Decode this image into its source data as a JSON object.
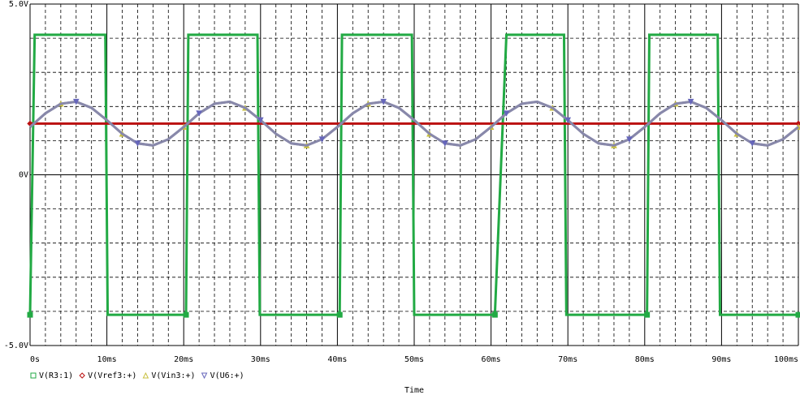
{
  "chart_data": {
    "type": "line",
    "xlabel": "Time",
    "xlim": [
      0,
      100
    ],
    "xticks": [
      {
        "value": 0,
        "label": "0s"
      },
      {
        "value": 10,
        "label": "10ms"
      },
      {
        "value": 20,
        "label": "20ms"
      },
      {
        "value": 30,
        "label": "30ms"
      },
      {
        "value": 40,
        "label": "40ms"
      },
      {
        "value": 50,
        "label": "50ms"
      },
      {
        "value": 60,
        "label": "60ms"
      },
      {
        "value": 70,
        "label": "70ms"
      },
      {
        "value": 80,
        "label": "80ms"
      },
      {
        "value": 90,
        "label": "90ms"
      },
      {
        "value": 100,
        "label": "100ms"
      }
    ],
    "ylim": [
      -5,
      5
    ],
    "yticks": [
      {
        "value": -5,
        "label": "-5.0V"
      },
      {
        "value": 0,
        "label": "0V"
      },
      {
        "value": 5,
        "label": "5.0V"
      }
    ],
    "grid": true,
    "series": [
      {
        "name": "V(R3:1)",
        "color": "#22aa44",
        "marker": "square",
        "x": [
          0,
          0.6,
          9.8,
          10.1,
          20.3,
          20.6,
          29.6,
          29.9,
          40.3,
          40.6,
          49.7,
          50.0,
          60.5,
          62.0,
          69.5,
          69.8,
          80.3,
          80.6,
          89.5,
          89.8,
          100
        ],
        "values": [
          -4.1,
          4.1,
          4.1,
          -4.1,
          -4.1,
          4.1,
          4.1,
          -4.1,
          -4.1,
          4.1,
          4.1,
          -4.1,
          -4.1,
          4.1,
          4.1,
          -4.1,
          -4.1,
          4.1,
          4.1,
          -4.1,
          -4.1
        ]
      },
      {
        "name": "V(Vref3:+)",
        "color": "#bb1111",
        "marker": "diamond",
        "x": [
          0,
          100
        ],
        "values": [
          1.5,
          1.5
        ]
      },
      {
        "name": "V(Vin3:+)",
        "color": "#c8c040",
        "marker": "triangle-up",
        "x": [
          0,
          2,
          4,
          6,
          8,
          10,
          12,
          14,
          16,
          18,
          20,
          22,
          24,
          26,
          28,
          30,
          32,
          34,
          36,
          38,
          40,
          42,
          44,
          46,
          48,
          50,
          52,
          54,
          56,
          58,
          60,
          62,
          64,
          66,
          68,
          70,
          72,
          74,
          76,
          78,
          80,
          82,
          84,
          86,
          88,
          90,
          92,
          94,
          96,
          98,
          100
        ],
        "values": [
          1.4,
          1.8,
          2.08,
          2.14,
          1.96,
          1.6,
          1.2,
          0.92,
          0.86,
          1.04,
          1.4,
          1.8,
          2.08,
          2.14,
          1.96,
          1.6,
          1.2,
          0.92,
          0.86,
          1.04,
          1.4,
          1.8,
          2.08,
          2.14,
          1.96,
          1.6,
          1.2,
          0.92,
          0.86,
          1.04,
          1.4,
          1.8,
          2.08,
          2.14,
          1.96,
          1.6,
          1.2,
          0.92,
          0.86,
          1.04,
          1.4,
          1.8,
          2.08,
          2.14,
          1.96,
          1.6,
          1.2,
          0.92,
          0.86,
          1.04,
          1.4
        ]
      },
      {
        "name": "V(U6:+)",
        "color": "#6666bb",
        "marker": "triangle-down",
        "x": [
          0,
          2,
          4,
          6,
          8,
          10,
          12,
          14,
          16,
          18,
          20,
          22,
          24,
          26,
          28,
          30,
          32,
          34,
          36,
          38,
          40,
          42,
          44,
          46,
          48,
          50,
          52,
          54,
          56,
          58,
          60,
          62,
          64,
          66,
          68,
          70,
          72,
          74,
          76,
          78,
          80,
          82,
          84,
          86,
          88,
          90,
          92,
          94,
          96,
          98,
          100
        ],
        "values": [
          1.4,
          1.8,
          2.08,
          2.14,
          1.96,
          1.6,
          1.2,
          0.92,
          0.86,
          1.04,
          1.4,
          1.8,
          2.08,
          2.14,
          1.96,
          1.6,
          1.2,
          0.92,
          0.86,
          1.04,
          1.4,
          1.8,
          2.08,
          2.14,
          1.96,
          1.6,
          1.2,
          0.92,
          0.86,
          1.04,
          1.4,
          1.8,
          2.08,
          2.14,
          1.96,
          1.6,
          1.2,
          0.92,
          0.86,
          1.04,
          1.4,
          1.8,
          2.08,
          2.14,
          1.96,
          1.6,
          1.2,
          0.92,
          0.86,
          1.04,
          1.4
        ]
      }
    ]
  }
}
